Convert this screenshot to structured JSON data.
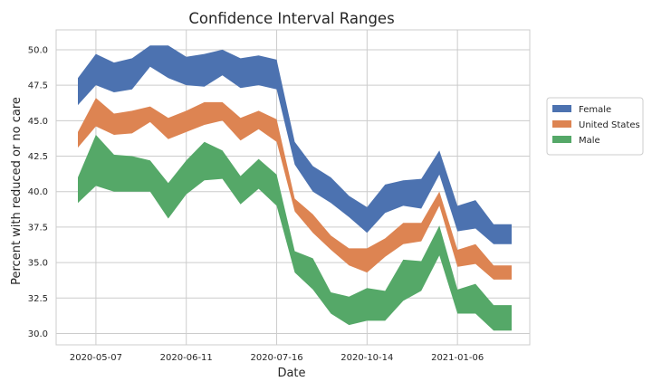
{
  "chart_data": {
    "type": "area",
    "title": "Confidence Interval Ranges",
    "xlabel": "Date",
    "ylabel": "Percent with reduced or no care",
    "x": [
      0,
      1,
      2,
      3,
      4,
      5,
      6,
      7,
      8,
      9,
      10,
      11,
      12,
      13,
      14,
      15,
      16,
      17,
      18,
      19,
      20,
      21,
      22,
      23,
      24
    ],
    "xlim": [
      -1.2,
      25
    ],
    "ylim": [
      29.2,
      51.4
    ],
    "x_tick_positions": [
      1,
      6,
      11,
      16,
      21
    ],
    "x_tick_labels": [
      "2020-05-07",
      "2020-06-11",
      "2020-07-16",
      "2020-10-14",
      "2021-01-06"
    ],
    "y_ticks": [
      30.0,
      32.5,
      35.0,
      37.5,
      40.0,
      42.5,
      45.0,
      47.5,
      50.0
    ],
    "y_tick_labels": [
      "30.0",
      "32.5",
      "35.0",
      "37.5",
      "40.0",
      "42.5",
      "45.0",
      "47.5",
      "50.0"
    ],
    "grid": true,
    "legend_position": "right",
    "series": [
      {
        "name": "Female",
        "color": "#4c72b0",
        "lower": [
          46.1,
          47.5,
          47.0,
          47.2,
          48.8,
          48.0,
          47.5,
          47.4,
          48.2,
          47.3,
          47.5,
          47.2,
          41.9,
          40.0,
          39.2,
          38.2,
          37.1,
          38.5,
          39.0,
          38.8,
          41.2,
          37.2,
          37.4,
          36.3,
          36.3
        ],
        "upper": [
          48.0,
          49.7,
          49.1,
          49.4,
          50.3,
          50.3,
          49.5,
          49.7,
          50.0,
          49.4,
          49.6,
          49.3,
          43.5,
          41.8,
          41.0,
          39.7,
          38.9,
          40.5,
          40.8,
          40.9,
          42.9,
          39.0,
          39.4,
          37.7,
          37.7
        ]
      },
      {
        "name": "United States",
        "color": "#dd8452",
        "lower": [
          43.1,
          44.6,
          44.0,
          44.1,
          44.9,
          43.7,
          44.2,
          44.7,
          45.0,
          43.6,
          44.4,
          43.5,
          38.6,
          37.1,
          35.9,
          34.8,
          34.3,
          35.4,
          36.3,
          36.5,
          39.0,
          34.7,
          34.9,
          33.8,
          33.8
        ],
        "upper": [
          44.2,
          46.6,
          45.5,
          45.7,
          46.0,
          45.2,
          45.7,
          46.3,
          46.3,
          45.2,
          45.7,
          45.1,
          39.5,
          38.4,
          36.9,
          36.0,
          36.0,
          36.7,
          37.8,
          37.8,
          40.0,
          35.9,
          36.3,
          34.8,
          34.8
        ]
      },
      {
        "name": "Male",
        "color": "#55a868",
        "lower": [
          39.2,
          40.4,
          40.0,
          40.0,
          40.0,
          38.1,
          39.8,
          40.8,
          40.9,
          39.1,
          40.2,
          39.0,
          34.3,
          33.1,
          31.4,
          30.6,
          30.9,
          30.9,
          32.3,
          33.0,
          35.5,
          31.4,
          31.4,
          30.2,
          30.2
        ],
        "upper": [
          41.0,
          44.0,
          42.6,
          42.5,
          42.2,
          40.6,
          42.2,
          43.5,
          42.9,
          41.1,
          42.3,
          41.2,
          35.8,
          35.3,
          32.9,
          32.6,
          33.2,
          33.0,
          35.2,
          35.1,
          37.6,
          33.1,
          33.5,
          32.0,
          32.0
        ]
      }
    ]
  }
}
